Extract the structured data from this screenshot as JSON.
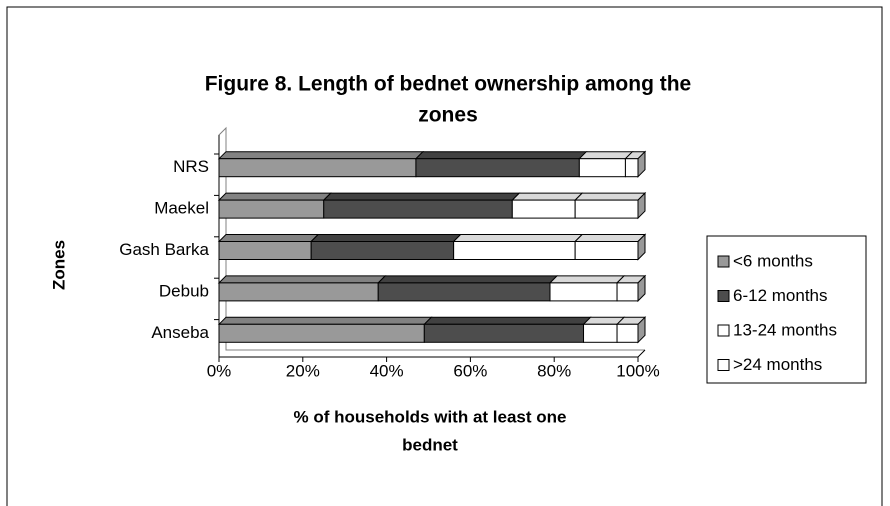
{
  "chart_data": {
    "type": "bar",
    "orientation": "horizontal",
    "stacked": true,
    "title": [
      "Figure 8.  Length of bednet ownership among the",
      "zones"
    ],
    "x_label": [
      "% of households with at least one",
      "bednet"
    ],
    "y_label": "Zones",
    "categories": [
      "NRS",
      "Maekel",
      "Gash Barka",
      "Debub",
      "Anseba"
    ],
    "series": [
      {
        "name": "<6 months",
        "color": "#999999",
        "values": [
          47,
          25,
          22,
          38,
          49
        ]
      },
      {
        "name": "6-12 months",
        "color": "#4d4d4d",
        "values": [
          39,
          45,
          34,
          41,
          38
        ]
      },
      {
        "name": "13-24 months",
        "color": "#ffffff",
        "values": [
          11,
          15,
          29,
          16,
          8
        ]
      },
      {
        "name": ">24 months",
        "color": "#ffffff",
        "values": [
          3,
          15,
          15,
          5,
          5
        ]
      }
    ],
    "xlim": [
      0,
      100
    ],
    "xticks": [
      {
        "value": 0,
        "label": "0%"
      },
      {
        "value": 20,
        "label": "20%"
      },
      {
        "value": 40,
        "label": "40%"
      },
      {
        "value": 60,
        "label": "60%"
      },
      {
        "value": 80,
        "label": "80%"
      },
      {
        "value": 100,
        "label": "100%"
      }
    ],
    "legend": "right"
  }
}
